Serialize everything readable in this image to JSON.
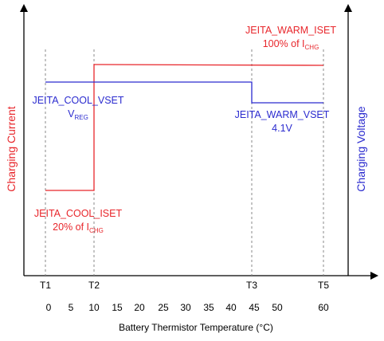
{
  "diagram": {
    "left_axis_label": "Charging Current",
    "right_axis_label": "Charging Voltage",
    "x_axis_label": "Battery Thermistor Temperature (°C)",
    "threshold_labels": [
      "T1",
      "T2",
      "T3",
      "T5"
    ],
    "temperature_ticks": [
      "0",
      "5",
      "10",
      "15",
      "20",
      "25",
      "30",
      "35",
      "40",
      "45",
      "50",
      "60"
    ],
    "annotations": {
      "warm_iset_name": "JEITA_WARM_ISET",
      "warm_iset_value_prefix": "100% of I",
      "warm_iset_value_sub": "CHG",
      "cool_vset_name": "JEITA_COOL_VSET",
      "cool_vset_value_main": "V",
      "cool_vset_value_sub": "REG",
      "warm_vset_name": "JEITA_WARM_VSET",
      "warm_vset_value": "4.1V",
      "cool_iset_name": "JEITA_COOL_ISET",
      "cool_iset_value_prefix": "20% of I",
      "cool_iset_value_sub": "CHG"
    },
    "colors": {
      "current": "#e8262b",
      "voltage": "#2b2bcf",
      "axis": "#000000",
      "guide": "#888888"
    }
  }
}
